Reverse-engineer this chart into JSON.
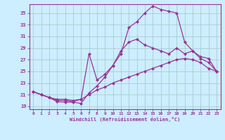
{
  "xlabel": "Windchill (Refroidissement éolien,°C)",
  "bg_color": "#cceeff",
  "grid_color": "#aacccc",
  "line_color": "#993399",
  "xlim": [
    -0.5,
    23.5
  ],
  "ylim": [
    18.5,
    36.5
  ],
  "yticks": [
    19,
    21,
    23,
    25,
    27,
    29,
    31,
    33,
    35
  ],
  "xticks": [
    0,
    1,
    2,
    3,
    4,
    5,
    6,
    7,
    8,
    9,
    10,
    11,
    12,
    13,
    14,
    15,
    16,
    17,
    18,
    19,
    20,
    21,
    22,
    23
  ],
  "line1": [
    21.5,
    21.0,
    20.5,
    19.8,
    19.7,
    19.7,
    19.5,
    21.3,
    22.5,
    24.0,
    26.0,
    28.0,
    32.5,
    33.5,
    35.0,
    36.2,
    35.6,
    35.3,
    35.0,
    30.0,
    28.5,
    27.5,
    27.2,
    25.0
  ],
  "line2": [
    21.5,
    21.0,
    20.5,
    20.0,
    20.0,
    19.8,
    20.2,
    28.0,
    23.5,
    24.5,
    26.0,
    28.5,
    30.0,
    30.5,
    29.5,
    29.0,
    28.5,
    28.0,
    29.0,
    28.0,
    28.5,
    27.2,
    26.5,
    25.0
  ],
  "line3": [
    21.5,
    21.0,
    20.5,
    20.2,
    20.2,
    20.0,
    20.2,
    21.0,
    21.8,
    22.3,
    23.0,
    23.5,
    24.0,
    24.5,
    25.0,
    25.5,
    26.0,
    26.5,
    27.0,
    27.2,
    27.0,
    26.5,
    25.5,
    25.0
  ],
  "figwidth": 3.2,
  "figheight": 2.0,
  "dpi": 100
}
